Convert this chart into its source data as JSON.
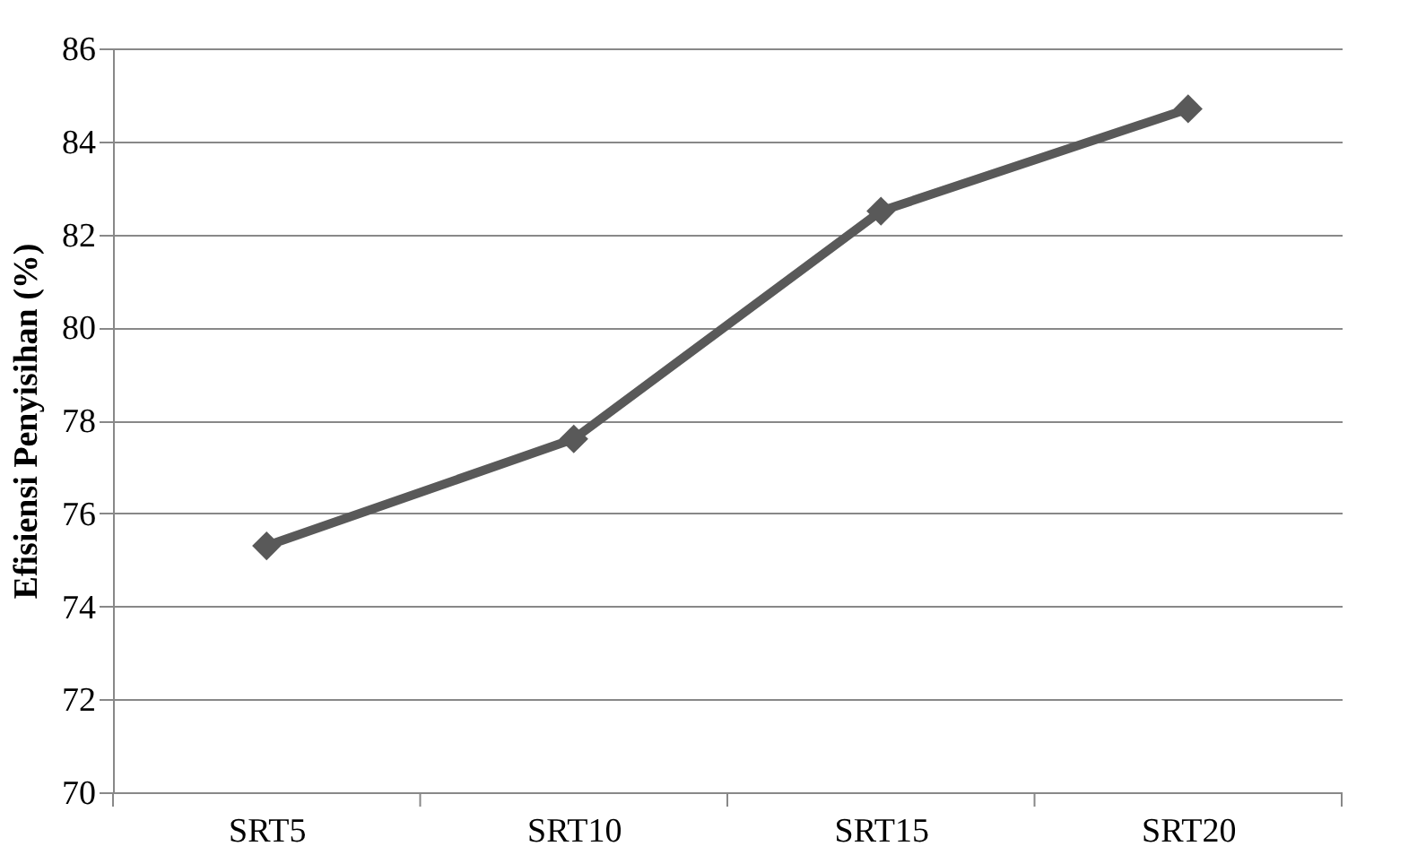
{
  "chart_data": {
    "type": "line",
    "ylabel": "Efisiensi Penyisihan (%)",
    "categories": [
      "SRT5",
      "SRT10",
      "SRT15",
      "SRT20"
    ],
    "series": [
      {
        "color": "#595959",
        "values": [
          75.3,
          77.6,
          82.5,
          84.7
        ]
      }
    ],
    "ylim": [
      70,
      86
    ],
    "yticks": [
      70,
      72,
      74,
      76,
      78,
      80,
      82,
      84,
      86
    ],
    "grid": "y",
    "marker": "diamond",
    "line_style": "solid",
    "legend": false
  }
}
